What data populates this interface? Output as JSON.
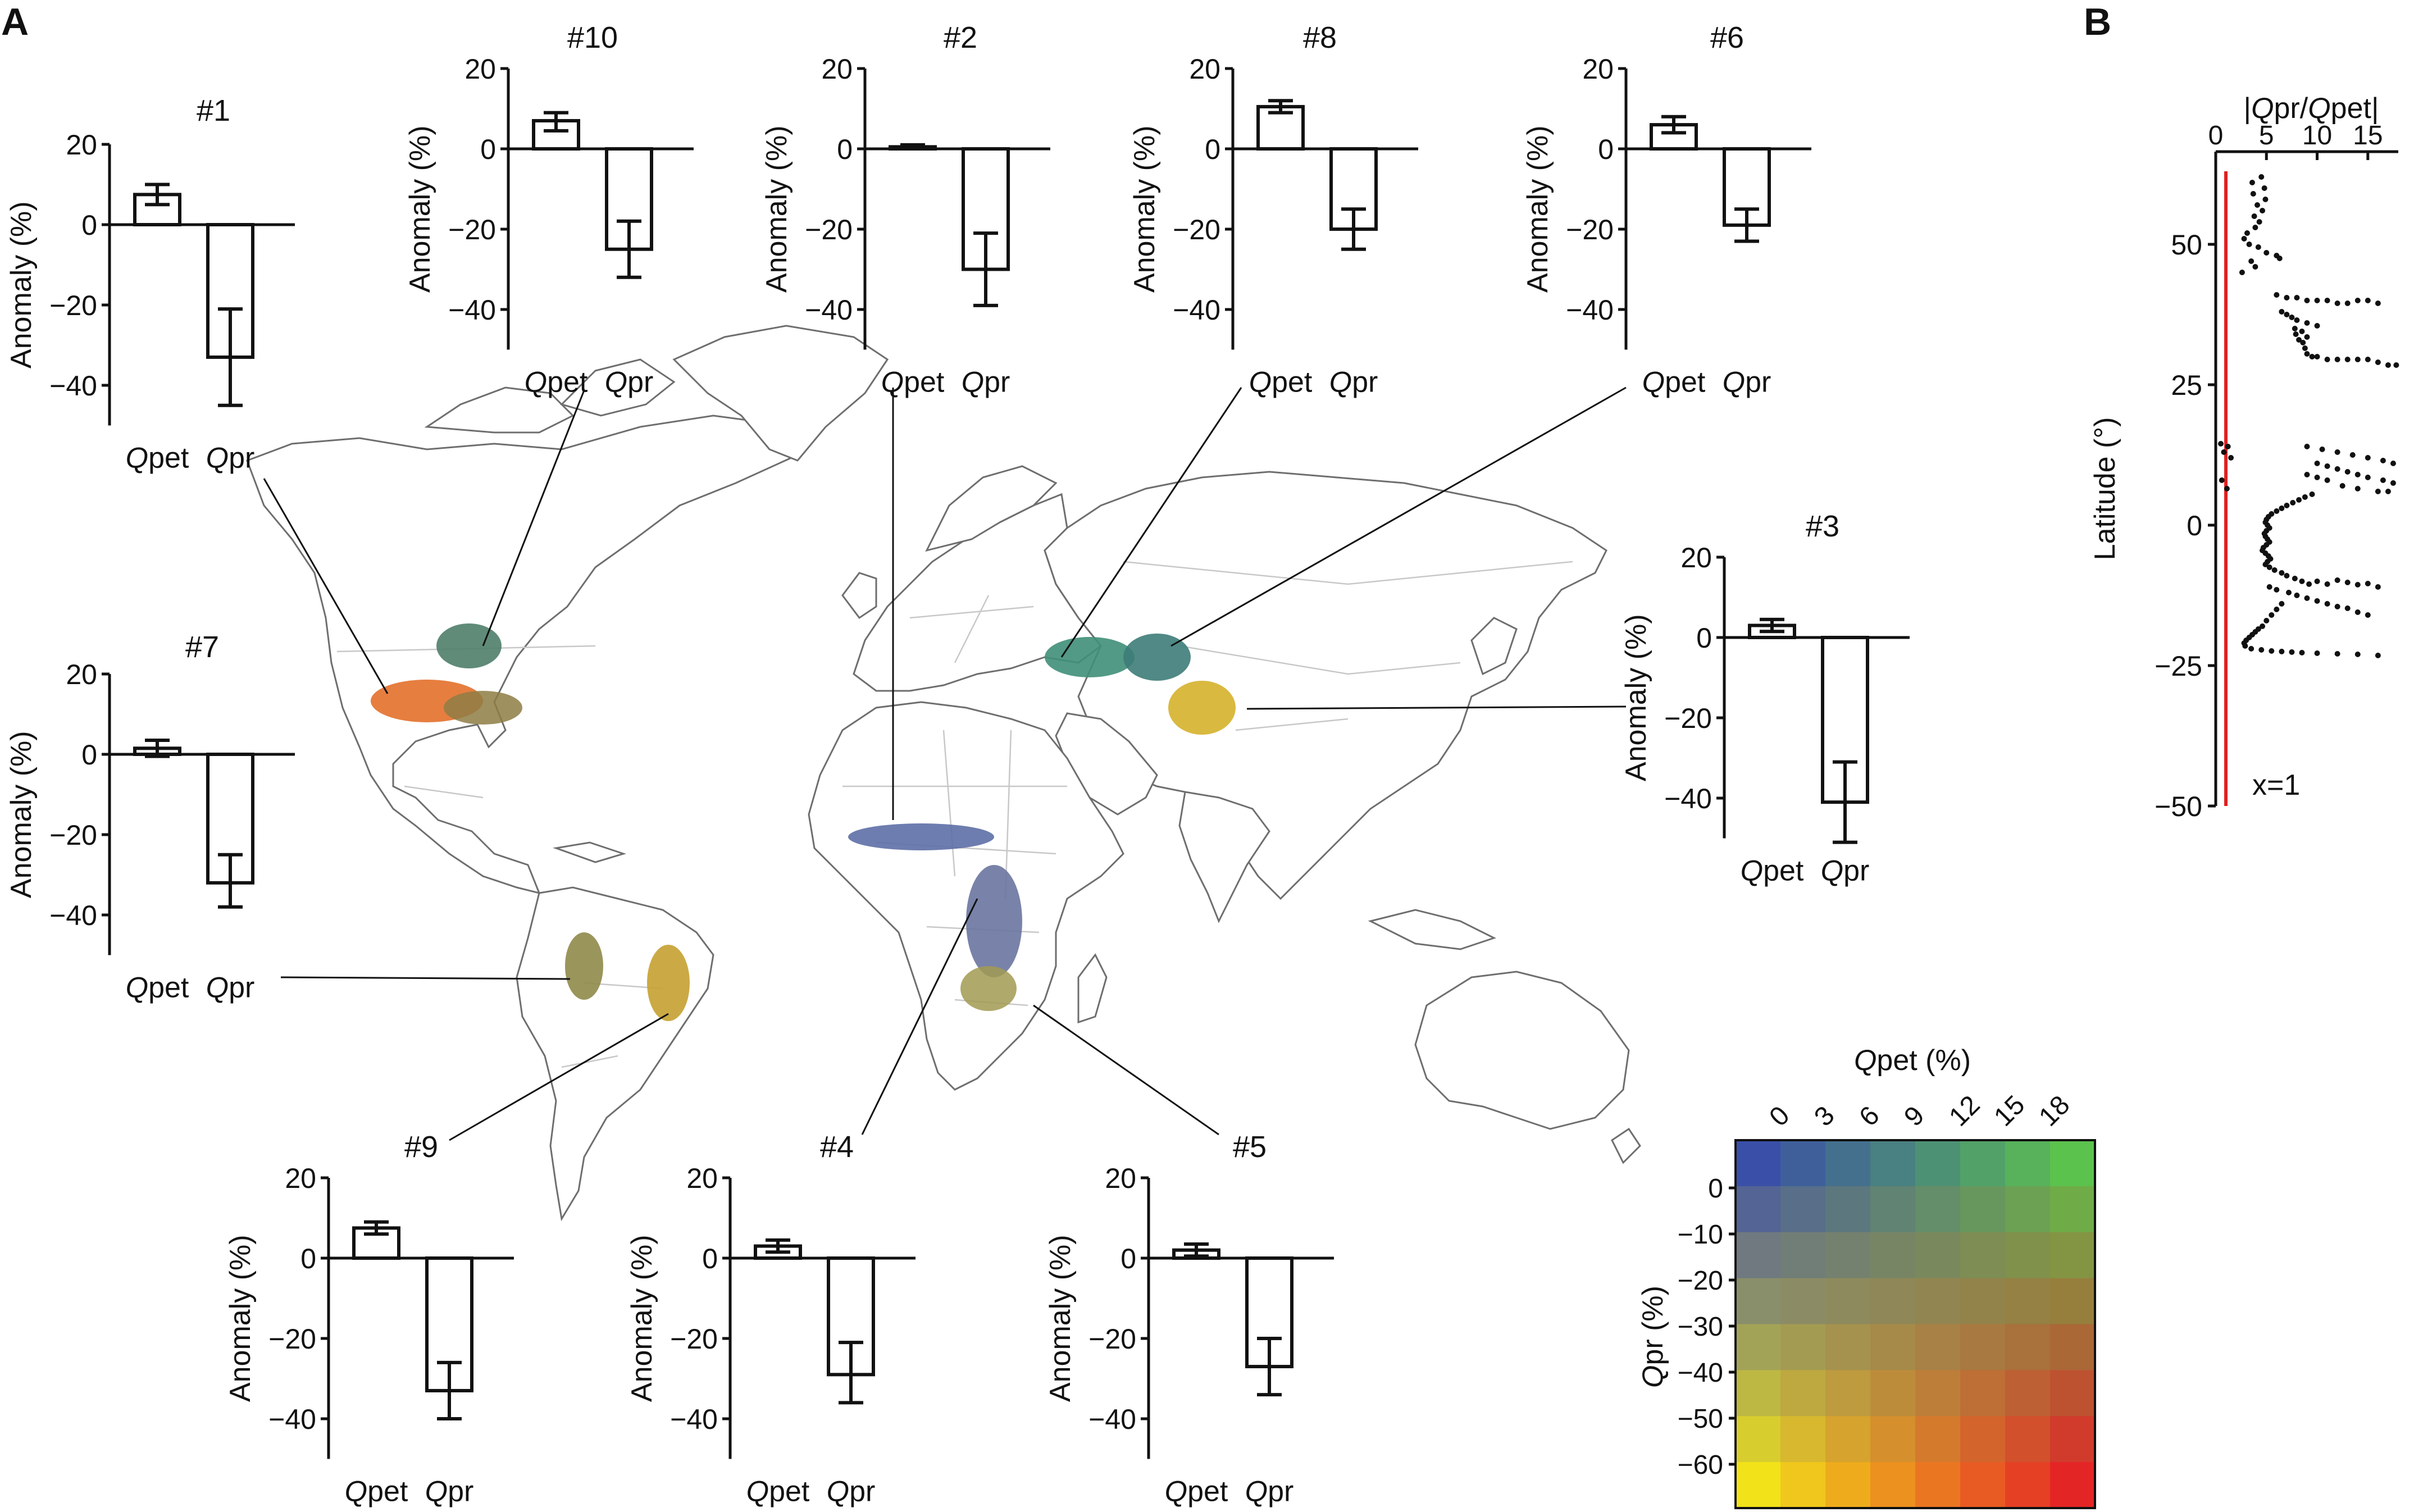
{
  "panels": {
    "a": "A",
    "b": "B"
  },
  "bar_common": {
    "ylabel": "Anomaly (%)",
    "categories": [
      {
        "italic": "Q",
        "rest": "pet"
      },
      {
        "italic": "Q",
        "rest": "pr"
      }
    ],
    "ylim": [
      -50,
      20
    ],
    "yticks": [
      20,
      0,
      -20,
      -40
    ],
    "ytick_labels": [
      "20",
      "0",
      "−20",
      "−40"
    ]
  },
  "chart_data": [
    {
      "type": "bar",
      "title": "#1",
      "categories": [
        "Qpet",
        "Qpr"
      ],
      "values": [
        7.5,
        -33
      ],
      "err_low": [
        5,
        21
      ],
      "err_high": [
        10,
        45
      ]
    },
    {
      "type": "bar",
      "title": "#10",
      "categories": [
        "Qpet",
        "Qpr"
      ],
      "values": [
        7,
        -25
      ],
      "err_low": [
        4.5,
        18
      ],
      "err_high": [
        9,
        32
      ]
    },
    {
      "type": "bar",
      "title": "#2",
      "categories": [
        "Qpet",
        "Qpr"
      ],
      "values": [
        0.5,
        -30
      ],
      "err_low": [
        0,
        21
      ],
      "err_high": [
        1,
        39
      ]
    },
    {
      "type": "bar",
      "title": "#8",
      "categories": [
        "Qpet",
        "Qpr"
      ],
      "values": [
        10.5,
        -20
      ],
      "err_low": [
        9,
        15
      ],
      "err_high": [
        12,
        25
      ]
    },
    {
      "type": "bar",
      "title": "#6",
      "categories": [
        "Qpet",
        "Qpr"
      ],
      "values": [
        6,
        -19
      ],
      "err_low": [
        4,
        15
      ],
      "err_high": [
        8,
        23
      ]
    },
    {
      "type": "bar",
      "title": "#7",
      "categories": [
        "Qpet",
        "Qpr"
      ],
      "values": [
        1.5,
        -32
      ],
      "err_low": [
        -0.5,
        25
      ],
      "err_high": [
        3.5,
        38
      ]
    },
    {
      "type": "bar",
      "title": "#3",
      "categories": [
        "Qpet",
        "Qpr"
      ],
      "values": [
        3,
        -41
      ],
      "err_low": [
        1.5,
        31
      ],
      "err_high": [
        4.5,
        51
      ]
    },
    {
      "type": "bar",
      "title": "#9",
      "categories": [
        "Qpet",
        "Qpr"
      ],
      "values": [
        7.5,
        -33
      ],
      "err_low": [
        6,
        26
      ],
      "err_high": [
        9,
        40
      ]
    },
    {
      "type": "bar",
      "title": "#4",
      "categories": [
        "Qpet",
        "Qpr"
      ],
      "values": [
        3,
        -29
      ],
      "err_low": [
        1.5,
        21
      ],
      "err_high": [
        4.5,
        36
      ]
    },
    {
      "type": "bar",
      "title": "#5",
      "categories": [
        "Qpet",
        "Qpr"
      ],
      "values": [
        2,
        -27
      ],
      "err_low": [
        0.5,
        20
      ],
      "err_high": [
        3.5,
        34
      ]
    },
    {
      "type": "scatter",
      "title": "|Qpr/Qpet|",
      "ylabel": "Latitude (°)",
      "xlim": [
        0,
        18
      ],
      "ylim": [
        -50,
        63
      ],
      "xticks": [
        0,
        5,
        10,
        15
      ],
      "yticks": [
        50,
        25,
        0,
        -25,
        -50
      ],
      "ytick_labels": [
        "50",
        "25",
        "0",
        "−25",
        "−50"
      ],
      "reference_line": {
        "x": 1,
        "label": "x=1",
        "color": "#e02020"
      },
      "points": [
        [
          4.5,
          62
        ],
        [
          3.6,
          61
        ],
        [
          4.8,
          60
        ],
        [
          3.7,
          59
        ],
        [
          4.9,
          58
        ],
        [
          4.1,
          57
        ],
        [
          4.6,
          56
        ],
        [
          3.8,
          55
        ],
        [
          4.3,
          54
        ],
        [
          3.9,
          53
        ],
        [
          3.1,
          52
        ],
        [
          2.8,
          51
        ],
        [
          3.3,
          50
        ],
        [
          4.2,
          49.5
        ],
        [
          5.0,
          48.5
        ],
        [
          6.0,
          48
        ],
        [
          6.3,
          47.5
        ],
        [
          3.5,
          47
        ],
        [
          3.9,
          46
        ],
        [
          2.6,
          45
        ],
        [
          6,
          41
        ],
        [
          7,
          40.5
        ],
        [
          8,
          40.5
        ],
        [
          9,
          40
        ],
        [
          10,
          40
        ],
        [
          11,
          40
        ],
        [
          12,
          39.5
        ],
        [
          13,
          39.5
        ],
        [
          14,
          40
        ],
        [
          15,
          40
        ],
        [
          16,
          39.5
        ],
        [
          6.5,
          38
        ],
        [
          7,
          37.5
        ],
        [
          7.5,
          37
        ],
        [
          8.0,
          36.5
        ],
        [
          9.0,
          36
        ],
        [
          10,
          35.5
        ],
        [
          7.8,
          35
        ],
        [
          8.5,
          34.5
        ],
        [
          7.9,
          34
        ],
        [
          9.0,
          33.5
        ],
        [
          8.2,
          33
        ],
        [
          8.6,
          32.5
        ],
        [
          8.8,
          31.5
        ],
        [
          9.0,
          30.5
        ],
        [
          9.5,
          30
        ],
        [
          10,
          30
        ],
        [
          11,
          29.5
        ],
        [
          12,
          29.5
        ],
        [
          13,
          29.5
        ],
        [
          14,
          29.5
        ],
        [
          15,
          29.5
        ],
        [
          16,
          29
        ],
        [
          17,
          28.5
        ],
        [
          17.8,
          28.5
        ],
        [
          0.5,
          14.5
        ],
        [
          1.2,
          14
        ],
        [
          0.8,
          13
        ],
        [
          1.5,
          12
        ],
        [
          9,
          14
        ],
        [
          10.5,
          13.5
        ],
        [
          12,
          13
        ],
        [
          13.5,
          12.5
        ],
        [
          15,
          12
        ],
        [
          16.5,
          11.5
        ],
        [
          17.5,
          11
        ],
        [
          10,
          11
        ],
        [
          11,
          10.5
        ],
        [
          12,
          10
        ],
        [
          13,
          9.5
        ],
        [
          14,
          9
        ],
        [
          15,
          8.5
        ],
        [
          16.5,
          8
        ],
        [
          17.5,
          7.5
        ],
        [
          9,
          9
        ],
        [
          10,
          8.5
        ],
        [
          11,
          8
        ],
        [
          12.5,
          7
        ],
        [
          14,
          6.5
        ],
        [
          16,
          6
        ],
        [
          17,
          6
        ],
        [
          0.6,
          8
        ],
        [
          1.1,
          6.5
        ],
        [
          9.5,
          5.5
        ],
        [
          8.8,
          5
        ],
        [
          8.2,
          4.5
        ],
        [
          7.6,
          4
        ],
        [
          7.0,
          3.5
        ],
        [
          6.5,
          3
        ],
        [
          6.0,
          2.5
        ],
        [
          5.5,
          2
        ],
        [
          5.2,
          1.5
        ],
        [
          5.0,
          1
        ],
        [
          4.9,
          0.5
        ],
        [
          5.1,
          0
        ],
        [
          5.3,
          -0.5
        ],
        [
          5.0,
          -1
        ],
        [
          4.8,
          -1.5
        ],
        [
          4.9,
          -2
        ],
        [
          5.1,
          -2.5
        ],
        [
          5.3,
          -3
        ],
        [
          5.0,
          -3.5
        ],
        [
          4.7,
          -4
        ],
        [
          4.6,
          -4.5
        ],
        [
          4.9,
          -5
        ],
        [
          5.2,
          -5.5
        ],
        [
          5.4,
          -6
        ],
        [
          5.1,
          -6.5
        ],
        [
          4.9,
          -7
        ],
        [
          5.3,
          -7.5
        ],
        [
          5.8,
          -8
        ],
        [
          6.5,
          -8.5
        ],
        [
          7.0,
          -9
        ],
        [
          7.8,
          -9.5
        ],
        [
          8.5,
          -10
        ],
        [
          9.2,
          -10.5
        ],
        [
          10,
          -10
        ],
        [
          11,
          -10.5
        ],
        [
          12,
          -9.8
        ],
        [
          13,
          -10.2
        ],
        [
          14,
          -10.6
        ],
        [
          15,
          -10.4
        ],
        [
          16,
          -11
        ],
        [
          5.3,
          -11
        ],
        [
          6.0,
          -11.5
        ],
        [
          7.2,
          -12
        ],
        [
          8.0,
          -12.5
        ],
        [
          9.0,
          -13
        ],
        [
          10,
          -13.5
        ],
        [
          11,
          -14
        ],
        [
          12,
          -14.5
        ],
        [
          13,
          -14.8
        ],
        [
          14,
          -15.5
        ],
        [
          15,
          -16
        ],
        [
          6.5,
          -14
        ],
        [
          6.0,
          -15
        ],
        [
          5.5,
          -16
        ],
        [
          5.0,
          -17
        ],
        [
          4.6,
          -18
        ],
        [
          4.2,
          -18.5
        ],
        [
          3.9,
          -19
        ],
        [
          3.6,
          -19.5
        ],
        [
          3.3,
          -20
        ],
        [
          3.0,
          -20.5
        ],
        [
          2.8,
          -21
        ],
        [
          2.9,
          -21.5
        ],
        [
          3.5,
          -22
        ],
        [
          4.5,
          -22.2
        ],
        [
          5.5,
          -22.4
        ],
        [
          6.5,
          -22.5
        ],
        [
          7.5,
          -22.6
        ],
        [
          8.5,
          -22.7
        ],
        [
          10,
          -22.8
        ],
        [
          12,
          -22.9
        ],
        [
          14,
          -23
        ],
        [
          16,
          -23.2
        ]
      ]
    },
    {
      "type": "heatmap",
      "title": "Qpet (%)",
      "ylabel": "Qpr (%)",
      "x_ticks": [
        "0",
        "3",
        "6",
        "9",
        "12",
        "15",
        "18"
      ],
      "y_ticks": [
        "0",
        "−10",
        "−20",
        "−30",
        "−40",
        "−50",
        "−60"
      ],
      "note": "Bivariate colour scale"
    }
  ],
  "colorbar_colors": {
    "top_left": "#3a4fa8",
    "top_right": "#5cc24e",
    "bottom_left": "#f2e21a",
    "bottom_right": "#e42526"
  }
}
